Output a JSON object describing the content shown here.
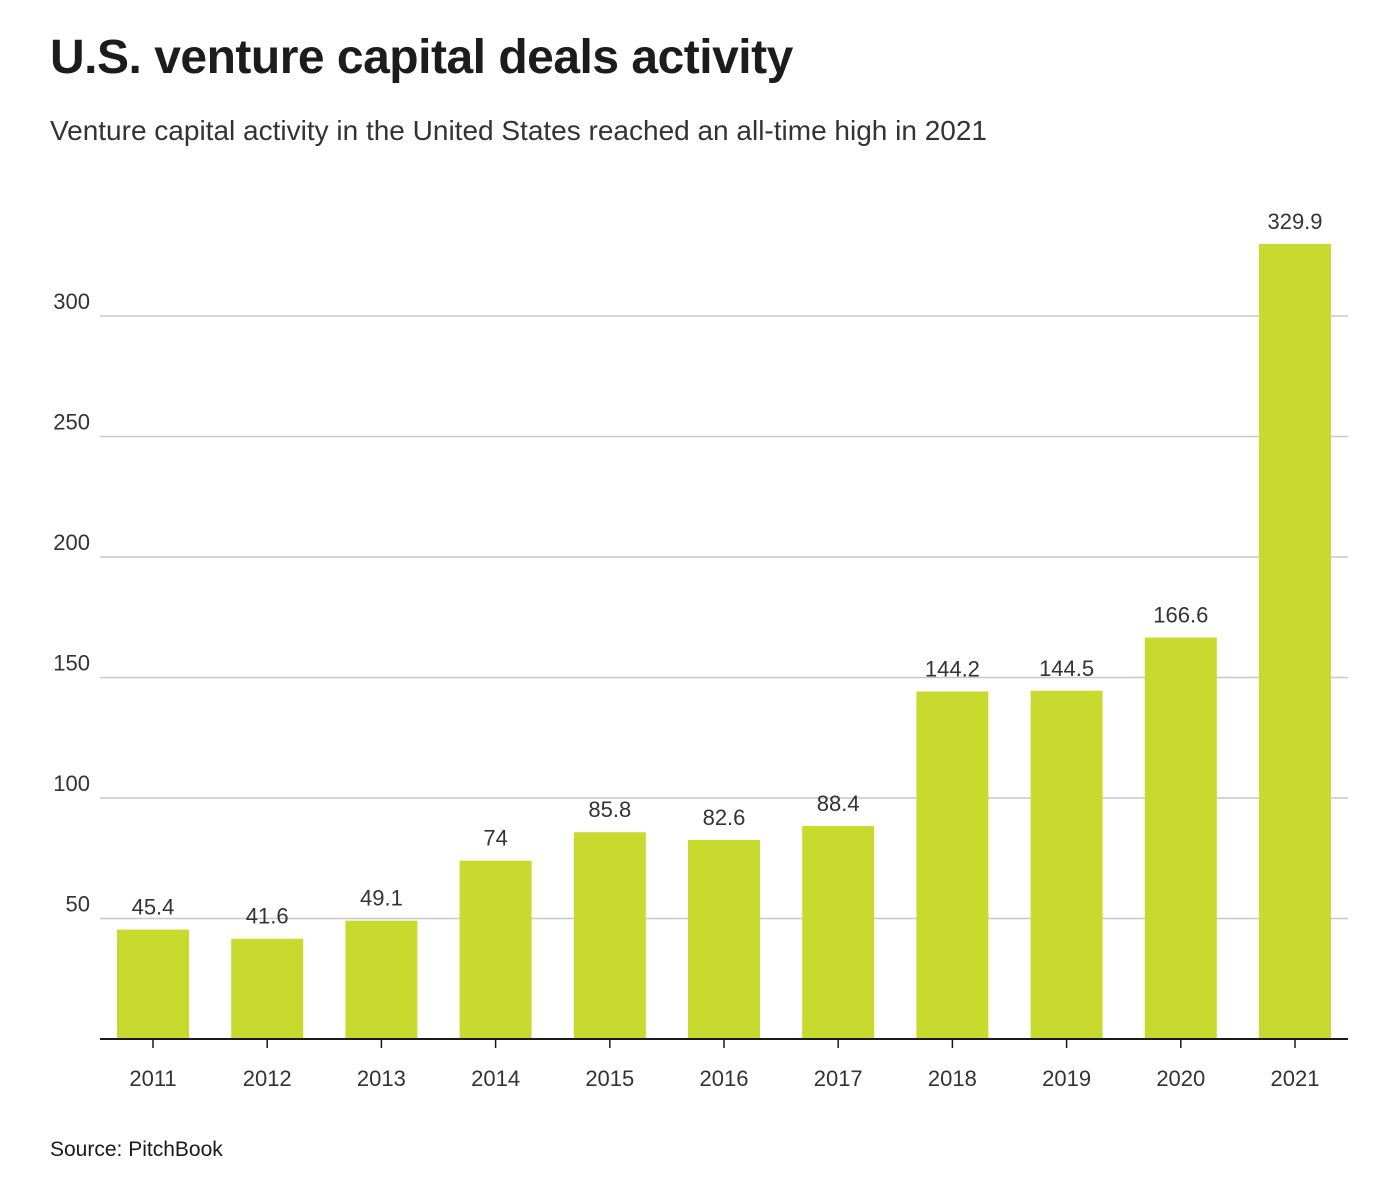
{
  "header": {
    "title": "U.S. venture capital deals activity",
    "subtitle": "Venture capital activity in the United States reached an all-time high in 2021"
  },
  "footer": {
    "source": "Source: PitchBook"
  },
  "colors": {
    "bar": "#c8da2e"
  },
  "chart_data": {
    "type": "bar",
    "title": "U.S. venture capital deals activity",
    "subtitle": "Venture capital activity in the United States reached an all-time high in 2021",
    "xlabel": "",
    "ylabel": "",
    "categories": [
      "2011",
      "2012",
      "2013",
      "2014",
      "2015",
      "2016",
      "2017",
      "2018",
      "2019",
      "2020",
      "2021"
    ],
    "values": [
      45.4,
      41.6,
      49.1,
      74,
      85.8,
      82.6,
      88.4,
      144.2,
      144.5,
      166.6,
      329.9
    ],
    "value_labels": [
      "45.4",
      "41.6",
      "49.1",
      "74",
      "85.8",
      "82.6",
      "88.4",
      "144.2",
      "144.5",
      "166.6",
      "329.9"
    ],
    "ylim": [
      0,
      330
    ],
    "yticks": [
      50,
      100,
      150,
      200,
      250,
      300
    ],
    "grid": true,
    "legend": "none"
  }
}
